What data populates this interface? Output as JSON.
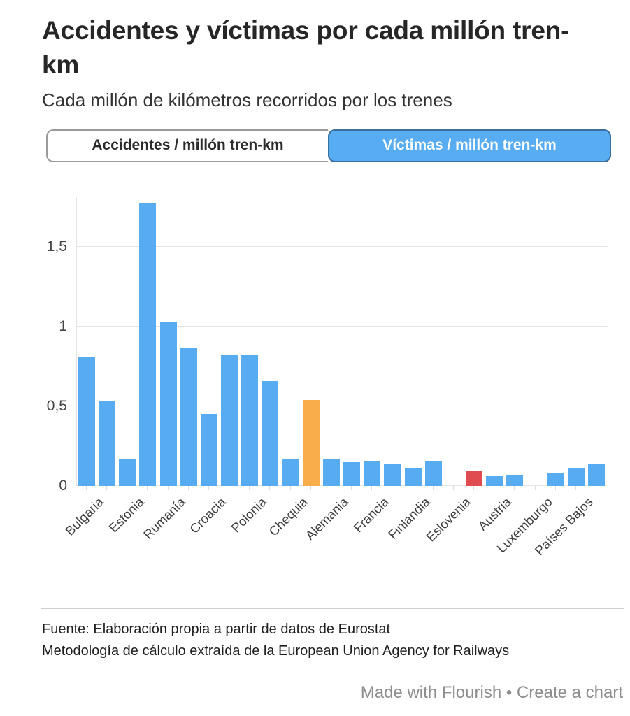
{
  "header": {
    "title": "Accidentes y víctimas por cada millón tren-km",
    "subtitle": "Cada millón de kilómetros recorridos por los trenes"
  },
  "tabs": [
    {
      "label": "Accidentes / millón tren-km",
      "active": false
    },
    {
      "label": "Víctimas / millón tren-km",
      "active": true
    }
  ],
  "colors": {
    "bar_default": "#57ACF1",
    "bar_orange": "#F9AE4B",
    "bar_red": "#E04B51",
    "tab_active_bg": "#58ACF2",
    "gridline": "#e4e4e4"
  },
  "chart_data": {
    "type": "bar",
    "title": "Accidentes y víctimas por cada millón tren-km",
    "subtitle": "Cada millón de kilómetros recorridos por los trenes",
    "xlabel": "",
    "ylabel": "",
    "ylim": [
      0,
      1.81
    ],
    "grid": true,
    "legend_position": "none",
    "decimal_format": "comma",
    "yticks": [
      {
        "value": 0,
        "label": "0"
      },
      {
        "value": 0.5,
        "label": "0,5"
      },
      {
        "value": 1,
        "label": "1"
      },
      {
        "value": 1.5,
        "label": "1,5"
      }
    ],
    "note": "26 bars total; only every other bar carries a visible country label; two labeled slots (Eslovenia, Luxemburgo) have no bar (value 0)",
    "bars": [
      {
        "label": "Bulgaria",
        "value": 0.81,
        "color": "blue"
      },
      {
        "label": "",
        "value": 0.53,
        "color": "blue"
      },
      {
        "label": "Estonia",
        "value": 0.17,
        "color": "blue"
      },
      {
        "label": "",
        "value": 1.77,
        "color": "blue"
      },
      {
        "label": "Rumanía",
        "value": 1.03,
        "color": "blue"
      },
      {
        "label": "",
        "value": 0.87,
        "color": "blue"
      },
      {
        "label": "Croacia",
        "value": 0.45,
        "color": "blue"
      },
      {
        "label": "",
        "value": 0.82,
        "color": "blue"
      },
      {
        "label": "Polonia",
        "value": 0.82,
        "color": "blue"
      },
      {
        "label": "",
        "value": 0.66,
        "color": "blue"
      },
      {
        "label": "Chequia",
        "value": 0.17,
        "color": "blue"
      },
      {
        "label": "",
        "value": 0.54,
        "color": "orange"
      },
      {
        "label": "Alemania",
        "value": 0.17,
        "color": "blue"
      },
      {
        "label": "",
        "value": 0.15,
        "color": "blue"
      },
      {
        "label": "Francia",
        "value": 0.16,
        "color": "blue"
      },
      {
        "label": "",
        "value": 0.14,
        "color": "blue"
      },
      {
        "label": "Finlandia",
        "value": 0.11,
        "color": "blue"
      },
      {
        "label": "",
        "value": 0.16,
        "color": "blue"
      },
      {
        "label": "Eslovenia",
        "value": 0,
        "color": "blue"
      },
      {
        "label": "",
        "value": 0.09,
        "color": "red"
      },
      {
        "label": "Austria",
        "value": 0.06,
        "color": "blue"
      },
      {
        "label": "",
        "value": 0.07,
        "color": "blue"
      },
      {
        "label": "Luxemburgo",
        "value": 0,
        "color": "blue"
      },
      {
        "label": "",
        "value": 0.08,
        "color": "blue"
      },
      {
        "label": "Países Bajos",
        "value": 0.11,
        "color": "blue"
      },
      {
        "label": "",
        "value": 0.14,
        "color": "blue"
      }
    ]
  },
  "footer": {
    "source_line1": "Fuente: Elaboración propia a partir de datos de Eurostat",
    "source_line2": "Metodología de cálculo extraída de la European Union Agency for Railways",
    "credit_made": "Made with Flourish",
    "credit_separator": "•",
    "credit_link": "Create a chart"
  }
}
